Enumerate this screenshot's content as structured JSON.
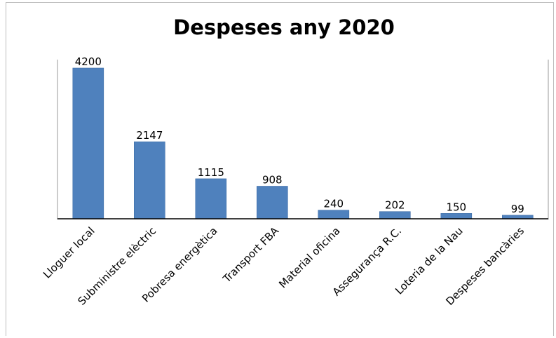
{
  "chart_data": {
    "type": "bar",
    "title": "Despeses any 2020",
    "categories": [
      "Lloguer local",
      "Subministre elèctric",
      "Pobresa energètica",
      "Transport FBA",
      "Material oficina",
      "Assegurança R.C.",
      "Loteria de la Nau",
      "Despeses bancàries"
    ],
    "values": [
      4200,
      2147,
      1115,
      908,
      240,
      202,
      150,
      99
    ],
    "xlabel": "",
    "ylabel": "",
    "ylim": [
      0,
      4200
    ],
    "grid": false,
    "legend": "none",
    "bar_color": "#4f81bd",
    "data_labels": true
  }
}
